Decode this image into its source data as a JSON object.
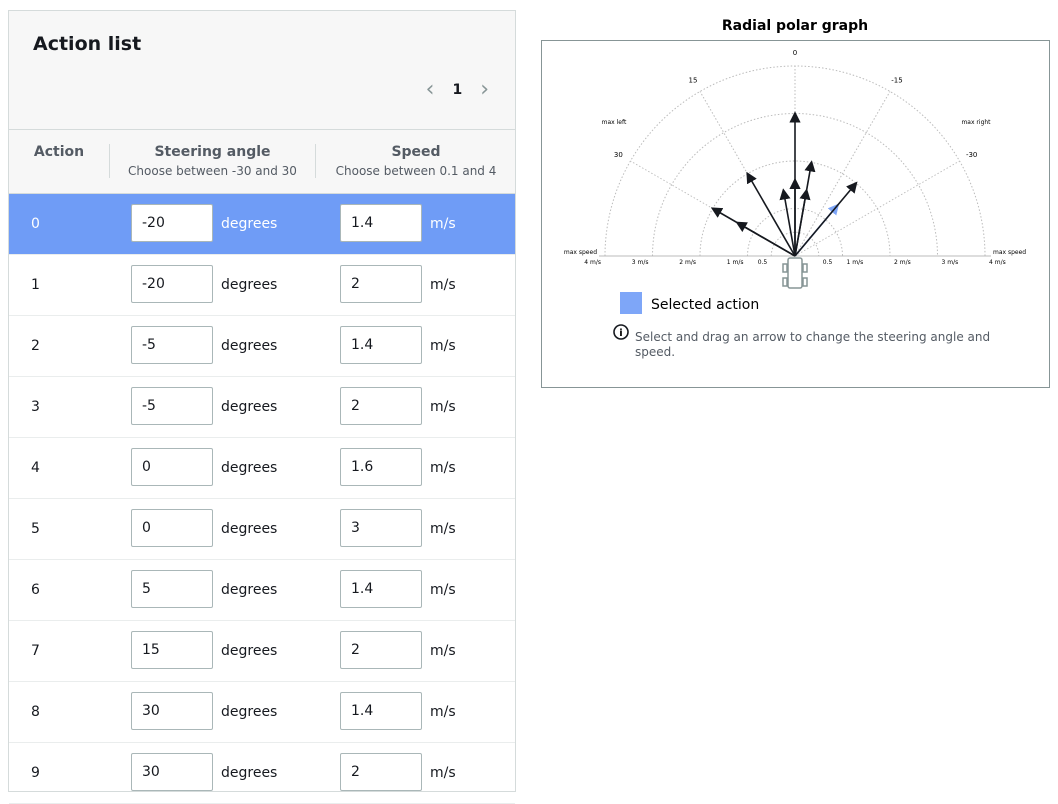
{
  "action_list": {
    "title": "Action list",
    "page": "1",
    "columns": [
      {
        "label": "Action"
      },
      {
        "label": "Steering angle",
        "hint": "Choose between -30 and 30"
      },
      {
        "label": "Speed",
        "hint": "Choose between 0.1 and 4"
      }
    ],
    "angle_unit": "degrees",
    "speed_unit": "m/s",
    "selected_color": "#6f9cf6",
    "rows": [
      {
        "action": 0,
        "angle": -20,
        "speed": 1.4,
        "selected": true
      },
      {
        "action": 1,
        "angle": -20,
        "speed": 2,
        "selected": false
      },
      {
        "action": 2,
        "angle": -5,
        "speed": 1.4,
        "selected": false
      },
      {
        "action": 3,
        "angle": -5,
        "speed": 2,
        "selected": false
      },
      {
        "action": 4,
        "angle": 0,
        "speed": 1.6,
        "selected": false
      },
      {
        "action": 5,
        "angle": 0,
        "speed": 3,
        "selected": false
      },
      {
        "action": 6,
        "angle": 5,
        "speed": 1.4,
        "selected": false
      },
      {
        "action": 7,
        "angle": 15,
        "speed": 2,
        "selected": false
      },
      {
        "action": 8,
        "angle": 30,
        "speed": 1.4,
        "selected": false
      },
      {
        "action": 9,
        "angle": 30,
        "speed": 2,
        "selected": false
      }
    ]
  },
  "polar_graph": {
    "title": "Radial polar graph",
    "arrow_color": "#16191f",
    "selected_color": "#7ea6f8",
    "angle_ticks": [
      0,
      15,
      -15,
      30,
      -30
    ],
    "left_label": "max left",
    "right_label": "max right",
    "max_speed_label": "max speed",
    "radius_ticks": [
      {
        "value": 0.5,
        "label": "0.5"
      },
      {
        "value": 1,
        "label": "1 m/s"
      },
      {
        "value": 2,
        "label": "2 m/s"
      },
      {
        "value": 3,
        "label": "3 m/s"
      },
      {
        "value": 4,
        "label": "4 m/s"
      }
    ],
    "legend": "Selected action",
    "info": "Select and drag an arrow to change the steering angle and speed."
  }
}
